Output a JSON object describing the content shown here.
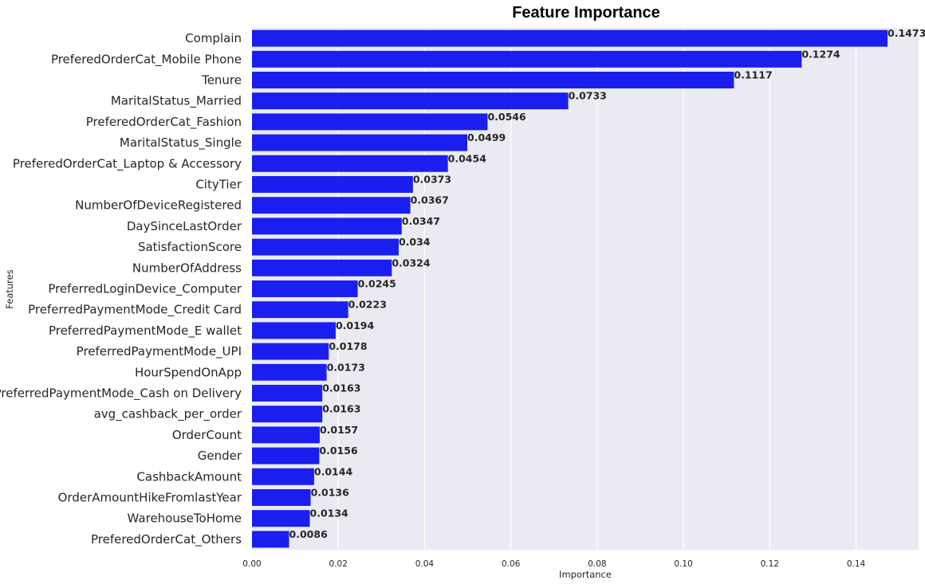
{
  "chart_data": {
    "type": "bar",
    "orientation": "horizontal",
    "title": "Feature Importance",
    "xlabel": "Importance",
    "ylabel": "Features",
    "xlim": [
      0,
      0.1545
    ],
    "xticks": [
      "0.00",
      "0.02",
      "0.04",
      "0.06",
      "0.08",
      "0.10",
      "0.12",
      "0.14"
    ],
    "grid": true,
    "bar_color": "#1a1ff0",
    "background_color": "#eaeaf2",
    "categories": [
      "Complain",
      "PreferedOrderCat_Mobile Phone",
      "Tenure",
      "MaritalStatus_Married",
      "PreferedOrderCat_Fashion",
      "MaritalStatus_Single",
      "PreferedOrderCat_Laptop & Accessory",
      "CityTier",
      "NumberOfDeviceRegistered",
      "DaySinceLastOrder",
      "SatisfactionScore",
      "NumberOfAddress",
      "PreferredLoginDevice_Computer",
      "PreferredPaymentMode_Credit Card",
      "PreferredPaymentMode_E wallet",
      "PreferredPaymentMode_UPI",
      "HourSpendOnApp",
      "PreferredPaymentMode_Cash on Delivery",
      "avg_cashback_per_order",
      "OrderCount",
      "Gender",
      "CashbackAmount",
      "OrderAmountHikeFromlastYear",
      "WarehouseToHome",
      "PreferedOrderCat_Others"
    ],
    "values": [
      0.1473,
      0.1274,
      0.1117,
      0.0733,
      0.0546,
      0.0499,
      0.0454,
      0.0373,
      0.0367,
      0.0347,
      0.034,
      0.0324,
      0.0245,
      0.0223,
      0.0194,
      0.0178,
      0.0173,
      0.0163,
      0.0163,
      0.0157,
      0.0156,
      0.0144,
      0.0136,
      0.0134,
      0.0086
    ],
    "value_labels": [
      "0.1473",
      "0.1274",
      "0.1117",
      "0.0733",
      "0.0546",
      "0.0499",
      "0.0454",
      "0.0373",
      "0.0367",
      "0.0347",
      "0.034",
      "0.0324",
      "0.0245",
      "0.0223",
      "0.0194",
      "0.0178",
      "0.0173",
      "0.0163",
      "0.0163",
      "0.0157",
      "0.0156",
      "0.0144",
      "0.0136",
      "0.0134",
      "0.0086"
    ]
  }
}
